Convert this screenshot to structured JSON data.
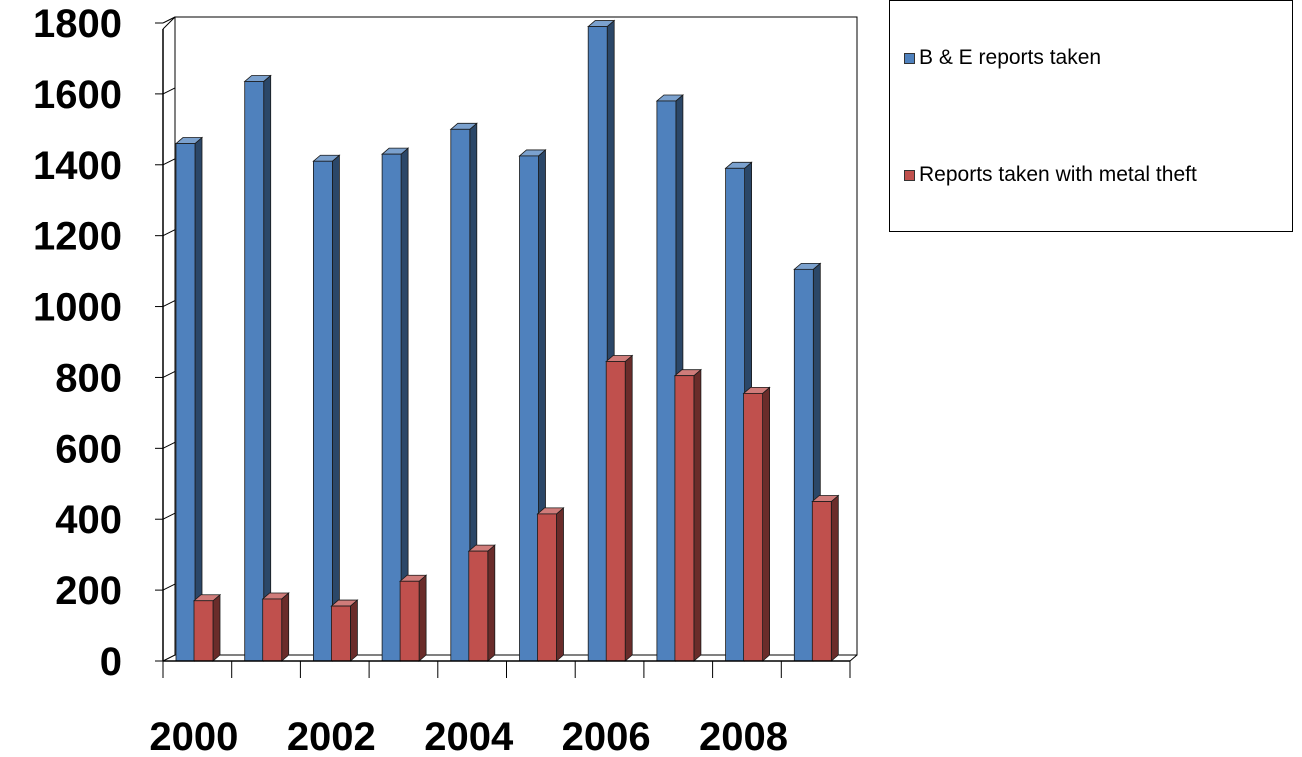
{
  "chart_data": {
    "type": "bar",
    "categories": [
      "2000",
      "2001",
      "2002",
      "2003",
      "2004",
      "2005",
      "2006",
      "2007",
      "2008",
      "2009"
    ],
    "x_tick_labels": [
      "2000",
      "2002",
      "2004",
      "2006",
      "2008"
    ],
    "y_tick_labels": [
      "0",
      "200",
      "400",
      "600",
      "800",
      "1000",
      "1200",
      "1400",
      "1600",
      "1800"
    ],
    "ylim": [
      0,
      1800
    ],
    "grid": true,
    "legend_position": "top-right",
    "series": [
      {
        "name": "B & E reports taken",
        "color": "#4F81BD",
        "values": [
          1460,
          1635,
          1410,
          1430,
          1500,
          1425,
          1790,
          1580,
          1390,
          1105
        ]
      },
      {
        "name": "Reports taken with metal theft",
        "color": "#C0504D",
        "values": [
          170,
          175,
          155,
          225,
          310,
          415,
          845,
          805,
          755,
          450
        ]
      }
    ]
  }
}
